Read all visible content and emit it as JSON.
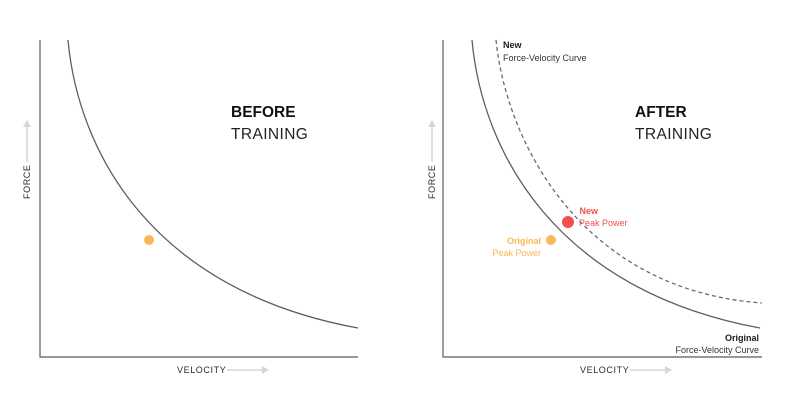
{
  "colors": {
    "original_point": "#f7b955",
    "new_point": "#ef5050",
    "dark_text": "#1a1a1a"
  },
  "left_panel": {
    "title_bold": "BEFORE",
    "title_regular": "TRAINING",
    "y_axis_label": "FORCE",
    "x_axis_label": "VELOCITY"
  },
  "right_panel": {
    "title_bold": "AFTER",
    "title_regular": "TRAINING",
    "y_axis_label": "FORCE",
    "x_axis_label": "VELOCITY",
    "new_curve_label_bold": "New",
    "new_curve_label": "Force-Velocity Curve",
    "new_point_label_bold": "New",
    "new_point_label": "Peak Power",
    "original_point_label_bold": "Original",
    "original_point_label": "Peak Power",
    "original_curve_label_bold": "Original",
    "original_curve_label": "Force-Velocity Curve"
  }
}
